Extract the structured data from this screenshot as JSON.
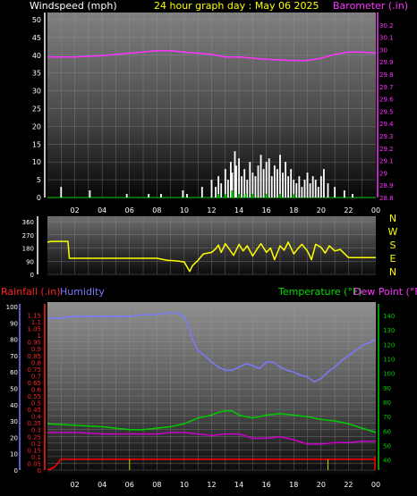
{
  "header": {
    "left_title": "Windspeed (mph)",
    "center_title": "24 hour graph day : May 06 2025",
    "right_title": "Barometer (.in)"
  },
  "lower_header": {
    "rainfall_label": "Rainfall (.in)",
    "humidity_label": "Humidity",
    "temperature_label": "Temperature (°F)",
    "dewpoint_label": "Dew Point (°F)"
  },
  "colors": {
    "wind_axis": "#ffffff",
    "barometer": "#ff33ff",
    "title": "#ffff00",
    "direction": "#ffff00",
    "rainfall": "#ff0000",
    "humidity": "#7a7aff",
    "temperature": "#00cc00",
    "dewpoint": "#cc00cc",
    "rain_line": "#ff0000"
  },
  "chart_data": [
    {
      "type": "line",
      "title": "24 hour graph day : May 06 2025",
      "x_ticks": [
        "02",
        "04",
        "06",
        "08",
        "10",
        "12",
        "14",
        "16",
        "18",
        "20",
        "22",
        "00"
      ],
      "left_axis": {
        "label": "Windspeed (mph)",
        "ticks": [
          0,
          5,
          10,
          15,
          20,
          25,
          30,
          35,
          40,
          45,
          50
        ],
        "range": [
          0,
          50
        ]
      },
      "right_axis": {
        "label": "Barometer (.in)",
        "ticks": [
          "28.8",
          "28.9",
          "29",
          "29.1",
          "29.2",
          "29.3",
          "29.4",
          "29.5",
          "29.6",
          "29.7",
          "29.8",
          "29.9",
          "30",
          "30.1",
          "30.2"
        ],
        "range": [
          28.8,
          30.3
        ]
      },
      "series": [
        {
          "name": "Barometer",
          "axis": "right",
          "x": [
            0,
            2,
            4,
            6,
            8,
            9,
            10,
            12,
            13,
            14,
            16,
            18,
            19,
            20,
            21,
            22,
            23,
            24
          ],
          "values": [
            29.94,
            29.94,
            29.95,
            29.97,
            29.99,
            29.99,
            29.98,
            29.96,
            29.94,
            29.94,
            29.92,
            29.91,
            29.91,
            29.93,
            29.96,
            29.98,
            29.98,
            29.97
          ]
        },
        {
          "name": "Windspeed",
          "axis": "left",
          "x": [
            1.0,
            3.1,
            5.8,
            7.4,
            8.3,
            9.9,
            10.2,
            11.3,
            12.0,
            12.3,
            12.5,
            12.7,
            13.0,
            13.2,
            13.4,
            13.5,
            13.7,
            13.8,
            14.0,
            14.2,
            14.4,
            14.6,
            14.8,
            15.0,
            15.2,
            15.4,
            15.6,
            15.8,
            16.0,
            16.2,
            16.4,
            16.6,
            16.8,
            17.0,
            17.2,
            17.4,
            17.6,
            17.8,
            18.0,
            18.2,
            18.4,
            18.6,
            18.8,
            19.0,
            19.2,
            19.4,
            19.6,
            19.8,
            20.0,
            20.2,
            20.5,
            21.0,
            21.7,
            22.3
          ],
          "values": [
            3,
            2,
            1,
            1,
            1,
            2,
            1,
            3,
            5,
            3,
            6,
            4,
            8,
            5,
            10,
            7,
            13,
            9,
            11,
            6,
            8,
            5,
            10,
            7,
            6,
            9,
            12,
            8,
            10,
            11,
            6,
            9,
            8,
            12,
            7,
            10,
            6,
            8,
            5,
            4,
            6,
            3,
            5,
            7,
            4,
            6,
            5,
            3,
            6,
            8,
            4,
            3,
            2,
            1
          ]
        },
        {
          "name": "Gust",
          "axis": "left",
          "x": [
            12.5,
            13.0,
            13.5,
            14.0,
            14.5,
            15.0,
            16.0,
            17.0,
            18.0
          ],
          "values": [
            1,
            1,
            2,
            1,
            1,
            1,
            1,
            1,
            1
          ]
        }
      ]
    },
    {
      "type": "line",
      "title": "",
      "x_ticks": [
        "02",
        "04",
        "06",
        "08",
        "10",
        "12",
        "14",
        "16",
        "18",
        "20",
        "22",
        "00"
      ],
      "left_axis": {
        "ticks": [
          0,
          90,
          180,
          270,
          360
        ],
        "range": [
          0,
          360
        ]
      },
      "right_axis": {
        "ticks": [
          "N",
          "W",
          "S",
          "E",
          "N"
        ]
      },
      "series": [
        {
          "name": "Wind Direction",
          "x": [
            0,
            0.3,
            1.5,
            1.6,
            2,
            4,
            6,
            8,
            8.8,
            9,
            9.6,
            10,
            10.4,
            10.6,
            11,
            11.4,
            12,
            12.3,
            12.5,
            12.7,
            13,
            13.3,
            13.6,
            14,
            14.3,
            14.6,
            15,
            15.3,
            15.6,
            16,
            16.3,
            16.6,
            17,
            17.3,
            17.6,
            18,
            18.3,
            18.6,
            19,
            19.3,
            19.6,
            20,
            20.3,
            20.6,
            21,
            21.4,
            22,
            24
          ],
          "values": [
            220,
            225,
            225,
            110,
            110,
            110,
            110,
            110,
            95,
            95,
            90,
            85,
            20,
            60,
            95,
            140,
            150,
            175,
            200,
            150,
            210,
            170,
            130,
            205,
            160,
            195,
            125,
            170,
            210,
            150,
            180,
            100,
            195,
            165,
            220,
            140,
            175,
            205,
            160,
            100,
            205,
            185,
            145,
            195,
            160,
            170,
            115,
            115
          ]
        }
      ]
    },
    {
      "type": "line",
      "title": "",
      "x_ticks": [
        "02",
        "04",
        "06",
        "08",
        "10",
        "12",
        "14",
        "16",
        "18",
        "20",
        "22",
        "00"
      ],
      "left_axis": {
        "label": "Rainfall (.in)",
        "ticks": [
          "0",
          "0.05",
          "0.1",
          "0.15",
          "0.2",
          "0.25",
          "0.3",
          "0.35",
          "0.4",
          "0.45",
          "0.5",
          "0.55",
          "0.6",
          "0.65",
          "0.7",
          "0.75",
          "0.8",
          "0.85",
          "0.9",
          "0.95",
          "1",
          "1.05",
          "1.1",
          "1.15"
        ],
        "range": [
          0,
          1.18
        ]
      },
      "humidity_axis": {
        "label": "Humidity",
        "ticks": [
          0,
          10,
          20,
          30,
          40,
          50,
          60,
          70,
          80,
          90,
          100
        ],
        "range": [
          0,
          100
        ]
      },
      "right_axis": {
        "label": "Temperature (°F)",
        "ticks": [
          40,
          50,
          60,
          70,
          80,
          90,
          100,
          110,
          120,
          130,
          140
        ],
        "range": [
          33,
          148
        ]
      },
      "series": [
        {
          "name": "Humidity",
          "axis": "humidity",
          "x": [
            0,
            1,
            2,
            4,
            6,
            7,
            8,
            8.5,
            9,
            9.5,
            10,
            10.3,
            10.6,
            11,
            11.5,
            12,
            12.5,
            13,
            13.5,
            14,
            14.5,
            15,
            15.5,
            16,
            16.5,
            17,
            17.5,
            18,
            18.5,
            19,
            19.5,
            20,
            20.5,
            21,
            21.5,
            22,
            22.5,
            23,
            23.5,
            24
          ],
          "values": [
            93,
            93,
            94,
            94,
            94,
            95,
            95,
            96,
            96,
            96,
            94,
            88,
            80,
            73,
            70,
            66,
            63,
            61,
            61,
            63,
            65,
            64,
            62,
            66,
            66,
            63,
            61,
            60,
            58,
            57,
            54,
            56,
            60,
            63,
            67,
            70,
            73,
            76,
            78,
            80
          ]
        },
        {
          "name": "Temperature",
          "axis": "right",
          "x": [
            0,
            2,
            4,
            5,
            6,
            7,
            8,
            9,
            10,
            11,
            12,
            12.5,
            13,
            13.5,
            14,
            15,
            16,
            17,
            18,
            19,
            20,
            21,
            22,
            23,
            24
          ],
          "values": [
            65,
            64,
            63,
            62,
            61,
            61,
            62,
            63,
            65,
            69,
            71,
            73,
            74,
            74,
            71,
            69,
            71,
            72,
            71,
            70,
            68,
            67,
            65,
            62,
            59
          ]
        },
        {
          "name": "Dew Point",
          "axis": "right",
          "x": [
            0,
            2,
            4,
            6,
            8,
            9,
            10,
            11,
            12,
            13,
            14,
            15,
            16,
            17,
            18,
            19,
            20,
            21,
            22,
            23,
            24
          ],
          "values": [
            59,
            59,
            58,
            58,
            58,
            59,
            59,
            58,
            57,
            58,
            58,
            55,
            55,
            56,
            54,
            51,
            51,
            52,
            52,
            53,
            53
          ]
        },
        {
          "name": "Rainfall",
          "axis": "left",
          "x": [
            0,
            0.5,
            1,
            24
          ],
          "values": [
            0,
            0.02,
            0.08,
            0.08
          ]
        }
      ]
    }
  ]
}
